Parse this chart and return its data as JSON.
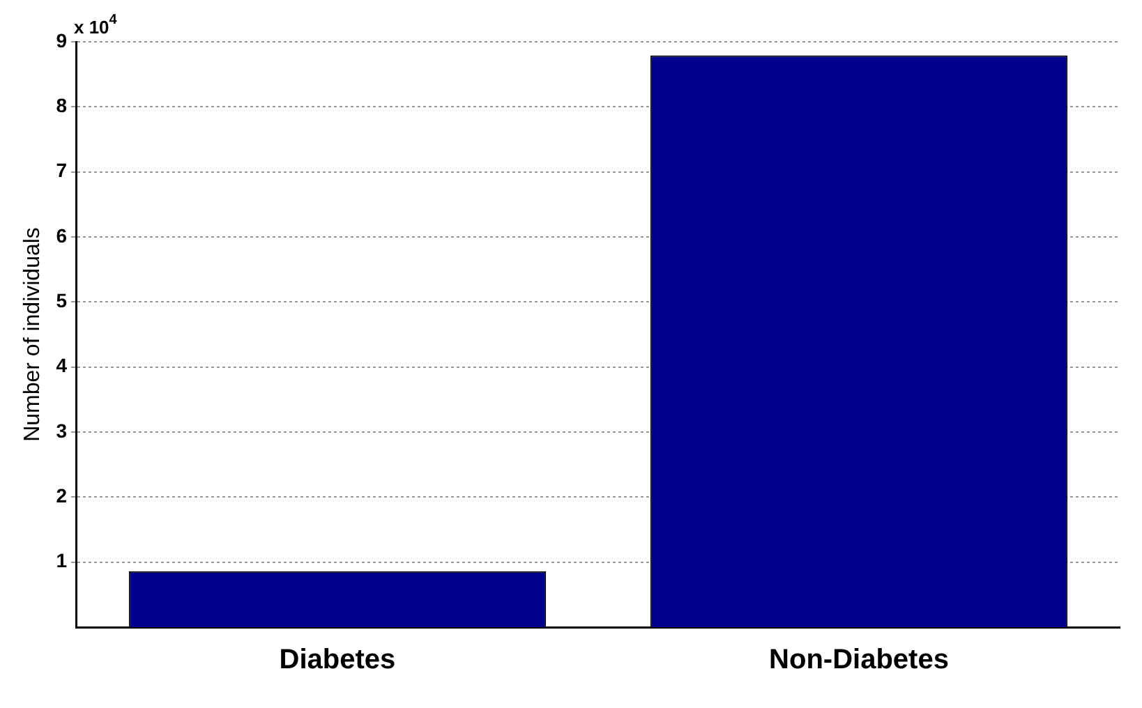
{
  "chart_data": {
    "type": "bar",
    "ylabel": "Number of individuals",
    "categories": [
      "Diabetes",
      "Non-Diabetes"
    ],
    "values": [
      0.86,
      8.79
    ],
    "color": "#00008f",
    "ylim": [
      0,
      9
    ],
    "yticks": [
      1,
      2,
      3,
      4,
      5,
      6,
      7,
      8,
      9
    ],
    "annotations": [
      "x 10$^{4}$"
    ],
    "grid": "y",
    "legend": false
  }
}
